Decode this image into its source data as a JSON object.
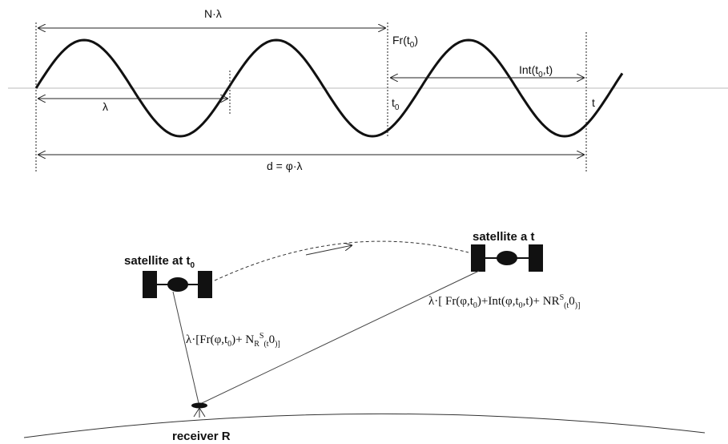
{
  "wave": {
    "n_lambda": "N·λ",
    "fr_t0": [
      "Fr(t",
      "0",
      ")"
    ],
    "int_t0_t": [
      "Int(t",
      "0",
      ",t)"
    ],
    "lambda": "λ",
    "t0": [
      "t",
      "0"
    ],
    "t": "t",
    "distance": "d = φ·λ"
  },
  "orbit": {
    "satellite_t0": [
      "satellite at  t",
      "0"
    ],
    "satellite_t": "satellite a t",
    "range_t": [
      "λ·[ Fr(φ,t",
      "0",
      ")+Int(φ,t",
      "0",
      ",t)+ N",
      "R",
      "S",
      "(t",
      "0",
      ")]"
    ],
    "range_t0": [
      "λ·[Fr(φ,t",
      "0",
      ")+ N",
      "R",
      "S",
      "(t",
      "0",
      ")]"
    ],
    "receiver": "receiver  R"
  }
}
